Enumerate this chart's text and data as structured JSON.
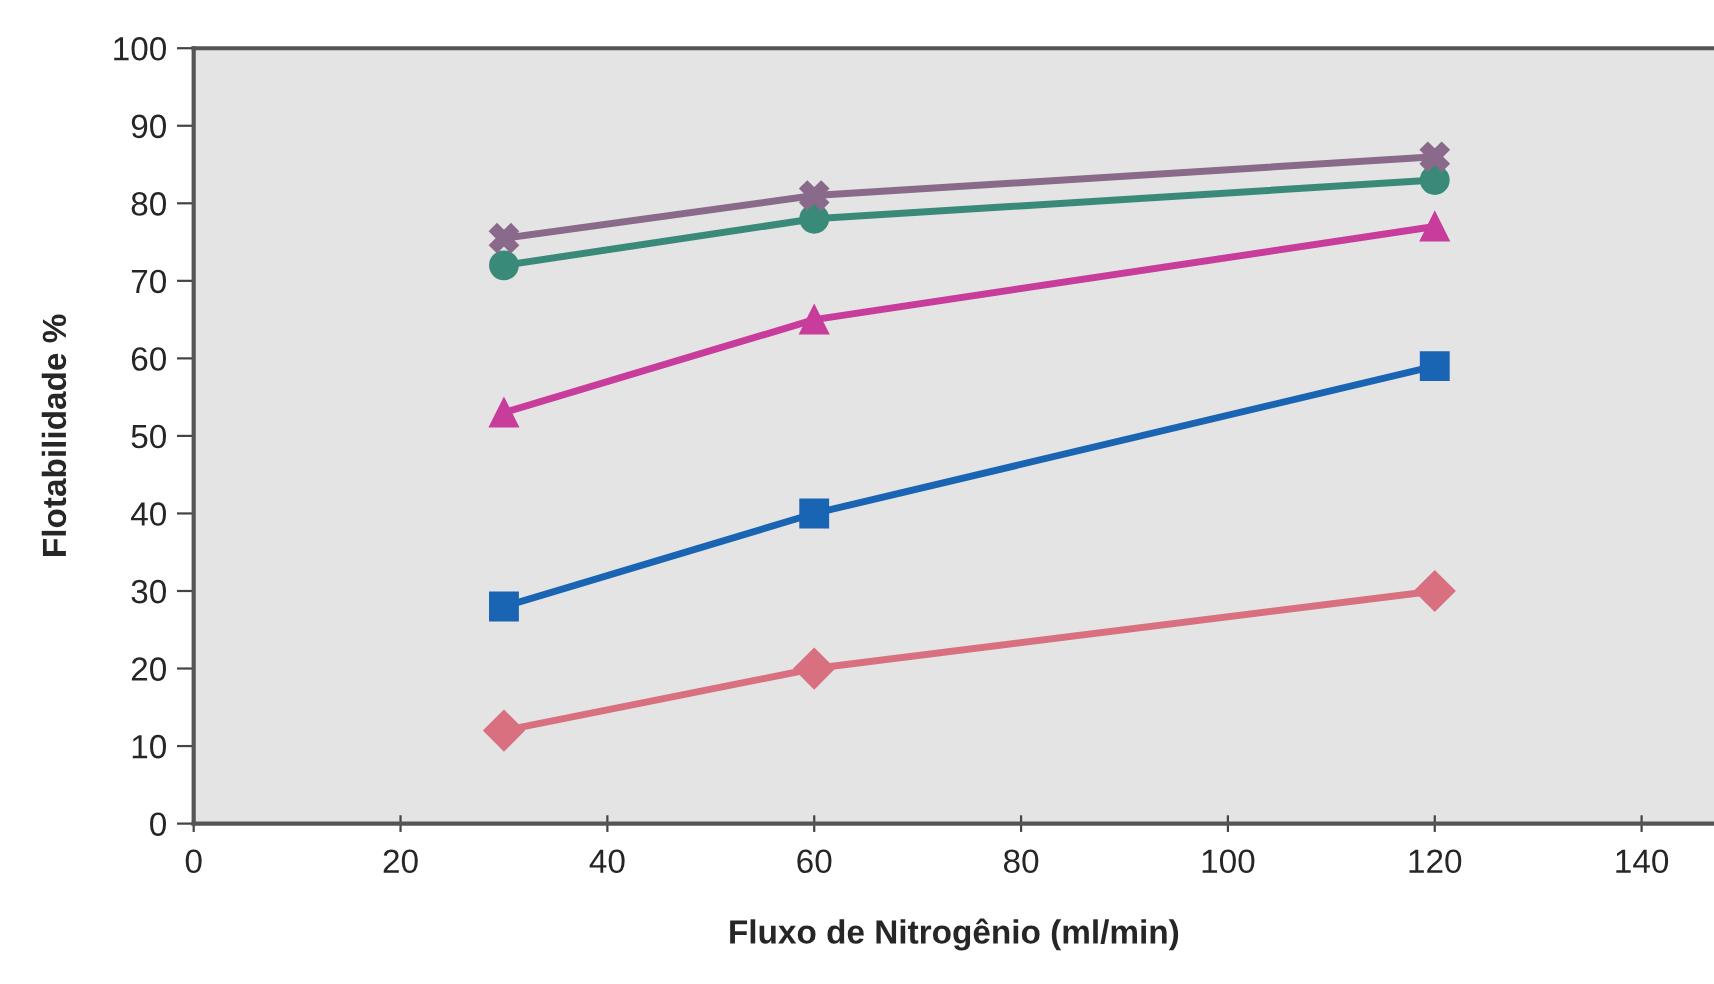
{
  "chart_data": {
    "type": "line",
    "xlabel": "Fluxo de Nitrogênio (ml/min)",
    "ylabel": "Flotabilidade %",
    "x": [
      30,
      60,
      120
    ],
    "series": [
      {
        "color": "#d87080",
        "marker": "diamond",
        "values": [
          12,
          20,
          30
        ]
      },
      {
        "color": "#1a64b4",
        "marker": "square",
        "values": [
          28,
          40,
          59
        ]
      },
      {
        "color": "#c83c9c",
        "marker": "triangle",
        "values": [
          53,
          65,
          77
        ]
      },
      {
        "color": "#3a8a7a",
        "marker": "circle",
        "values": [
          72,
          78,
          83
        ]
      },
      {
        "color": "#8a6a8a",
        "marker": "cross",
        "values": [
          75.5,
          81,
          86
        ]
      }
    ],
    "xlim": [
      0,
      147
    ],
    "xticks": [
      0,
      20,
      40,
      60,
      80,
      100,
      120,
      140
    ],
    "ylim": [
      0,
      100
    ],
    "yticks": [
      0,
      10,
      20,
      30,
      40,
      50,
      60,
      70,
      80,
      90,
      100
    ],
    "grid": false,
    "legend": false
  }
}
